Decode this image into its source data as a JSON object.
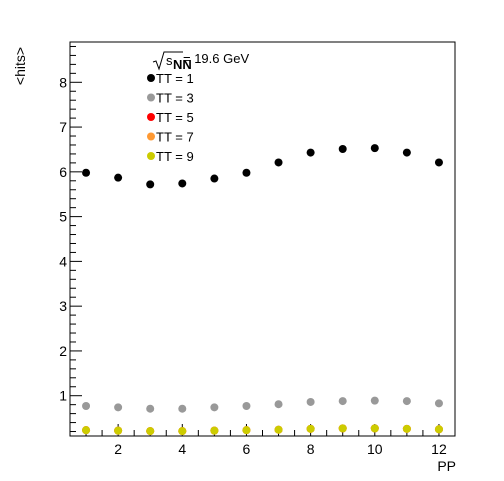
{
  "chart_data": {
    "type": "scatter",
    "energy_label": {
      "root_arg": "s",
      "subscript": "NN",
      "value": " = 19.6 GeV"
    },
    "xlabel": "PP",
    "ylabel": "<hits>",
    "xlim": [
      0.5,
      12.5
    ],
    "ylim": [
      0.1,
      8.9
    ],
    "grid": false,
    "legend_position": "top-left",
    "x_ticks": [
      2,
      4,
      6,
      8,
      10,
      12
    ],
    "y_ticks": [
      1,
      2,
      3,
      4,
      5,
      6,
      7,
      8
    ],
    "x": [
      1,
      2,
      3,
      4,
      5,
      6,
      7,
      8,
      9,
      10,
      11,
      12
    ],
    "series": [
      {
        "name": "TT = 1",
        "color": "#000000",
        "values": [
          5.98,
          5.87,
          5.72,
          5.74,
          5.85,
          5.98,
          6.21,
          6.43,
          6.51,
          6.53,
          6.43,
          6.21
        ]
      },
      {
        "name": "TT = 3",
        "color": "#999999",
        "values": [
          0.77,
          0.74,
          0.71,
          0.71,
          0.74,
          0.77,
          0.81,
          0.86,
          0.88,
          0.89,
          0.88,
          0.83
        ]
      },
      {
        "name": "TT = 5",
        "color": "#ff0000",
        "values": [
          0.23,
          0.22,
          0.21,
          0.21,
          0.22,
          0.23,
          0.24,
          0.26,
          0.27,
          0.27,
          0.26,
          0.25
        ]
      },
      {
        "name": "TT = 7",
        "color": "#ff9933",
        "values": [
          0.23,
          0.22,
          0.21,
          0.21,
          0.22,
          0.23,
          0.24,
          0.26,
          0.27,
          0.27,
          0.26,
          0.25
        ]
      },
      {
        "name": "TT = 9",
        "color": "#cccc00",
        "values": [
          0.23,
          0.22,
          0.21,
          0.21,
          0.22,
          0.23,
          0.24,
          0.26,
          0.27,
          0.27,
          0.26,
          0.25
        ]
      }
    ]
  }
}
